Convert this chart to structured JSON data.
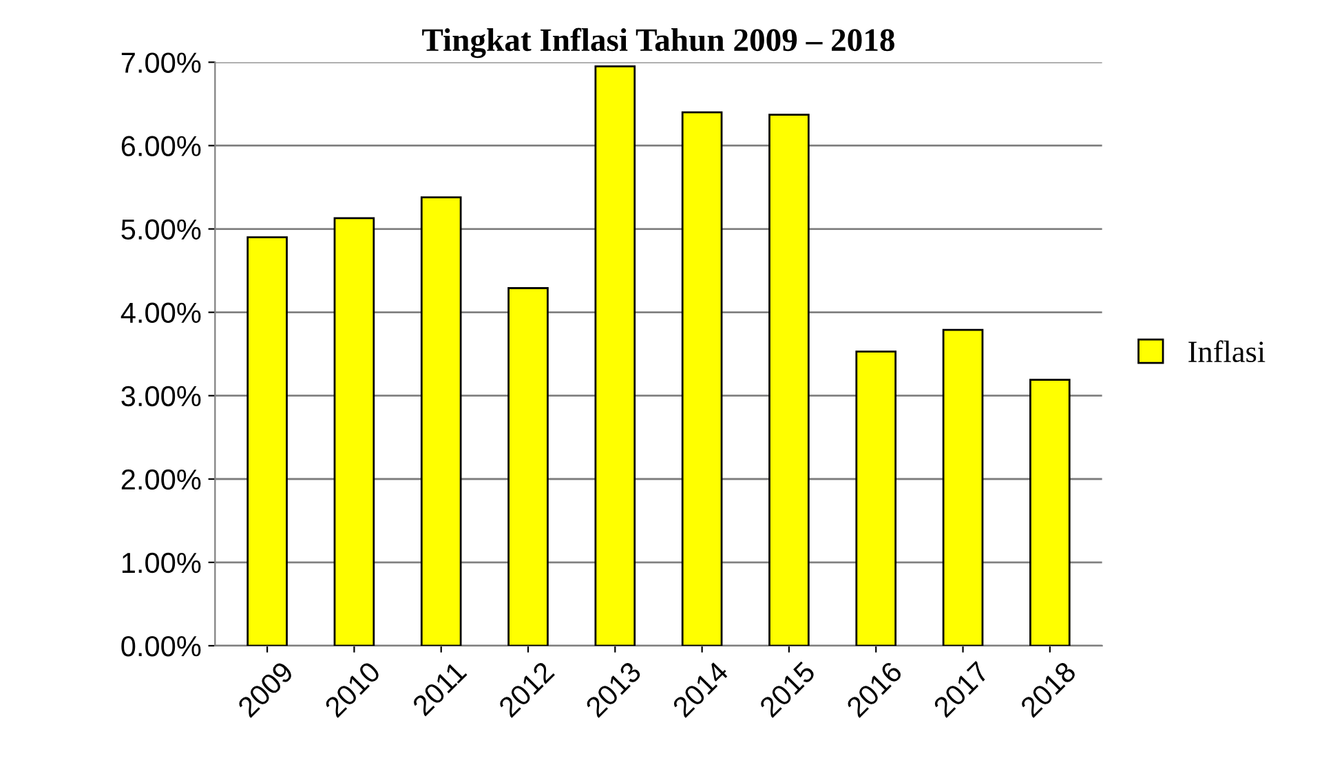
{
  "chart_data": {
    "type": "bar",
    "title": "Tingkat Inflasi Tahun 2009 – 2018",
    "categories": [
      "2009",
      "2010",
      "2011",
      "2012",
      "2013",
      "2014",
      "2015",
      "2016",
      "2017",
      "2018"
    ],
    "series": [
      {
        "name": "Inflasi",
        "color": "#ffff00",
        "values": [
          4.9,
          5.13,
          5.38,
          4.29,
          6.95,
          6.4,
          6.37,
          3.53,
          3.79,
          3.19
        ]
      }
    ],
    "ylim": [
      0,
      7
    ],
    "yticks": [
      {
        "value": 0,
        "label": "0.00%"
      },
      {
        "value": 1,
        "label": "1.00%"
      },
      {
        "value": 2,
        "label": "2.00%"
      },
      {
        "value": 3,
        "label": "3.00%"
      },
      {
        "value": 4,
        "label": "4.00%"
      },
      {
        "value": 5,
        "label": "5.00%"
      },
      {
        "value": 6,
        "label": "6.00%"
      },
      {
        "value": 7,
        "label": "7.00%"
      }
    ],
    "grid": "y",
    "legend": "right"
  }
}
